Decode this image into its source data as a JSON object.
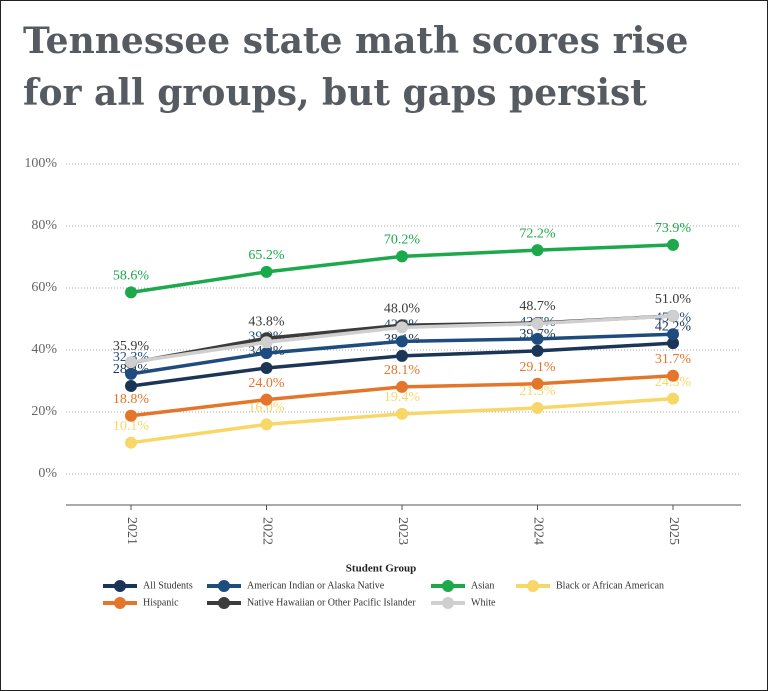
{
  "chart_data": {
    "type": "line",
    "title": "Tennessee state math scores rise for all groups, but gaps persist",
    "x": [
      "2021",
      "2022",
      "2023",
      "2024",
      "2025"
    ],
    "ylim": [
      -10,
      100
    ],
    "yticks": [
      {
        "value": 0,
        "label": "0%"
      },
      {
        "value": 20,
        "label": "20%"
      },
      {
        "value": 40,
        "label": "40%"
      },
      {
        "value": 60,
        "label": "60%"
      },
      {
        "value": 80,
        "label": "80%"
      },
      {
        "value": 100,
        "label": "100%"
      }
    ],
    "grid": true,
    "legend_title": "Student Group",
    "legend": "bottom",
    "series": [
      {
        "name": "All Students",
        "color": "#1b3556",
        "values": [
          28.4,
          34.2,
          38.1,
          39.7,
          42.2
        ],
        "value_labels": [
          "28.4%",
          "34.2%",
          "38.1%",
          "39.7%",
          "42.2%"
        ]
      },
      {
        "name": "American Indian or Alaska Native",
        "color": "#1f4c7e",
        "values": [
          32.3,
          39.0,
          42.8,
          43.6,
          45.1
        ],
        "value_labels": [
          "32.3%",
          "39.0%",
          "42.8%",
          "43.6%",
          "45.1%"
        ]
      },
      {
        "name": "Asian",
        "color": "#1ca94c",
        "values": [
          58.6,
          65.2,
          70.2,
          72.2,
          73.9
        ],
        "value_labels": [
          "58.6%",
          "65.2%",
          "70.2%",
          "72.2%",
          "73.9%"
        ]
      },
      {
        "name": "Black or African American",
        "color": "#f7d767",
        "values": [
          10.1,
          16.0,
          19.4,
          21.3,
          24.3
        ],
        "value_labels": [
          "10.1%",
          "16.0%",
          "19.4%",
          "21.3%",
          "24.3%"
        ]
      },
      {
        "name": "Hispanic",
        "color": "#e4762b",
        "values": [
          18.8,
          24.0,
          28.1,
          29.1,
          31.7
        ],
        "value_labels": [
          "18.8%",
          "24.0%",
          "28.1%",
          "29.1%",
          "31.7%"
        ]
      },
      {
        "name": "Native Hawaiian or Other Pacific Islander",
        "color": "#3b3b3b",
        "values": [
          35.9,
          43.8,
          48.0,
          48.7,
          51.0
        ],
        "value_labels": [
          "35.9%",
          "43.8%",
          "48.0%",
          "48.7%",
          "51.0%"
        ]
      },
      {
        "name": "White",
        "color": "#cfcfcf",
        "values": [
          36.1,
          42.5,
          47.3,
          48.5,
          51.0
        ]
      }
    ]
  }
}
